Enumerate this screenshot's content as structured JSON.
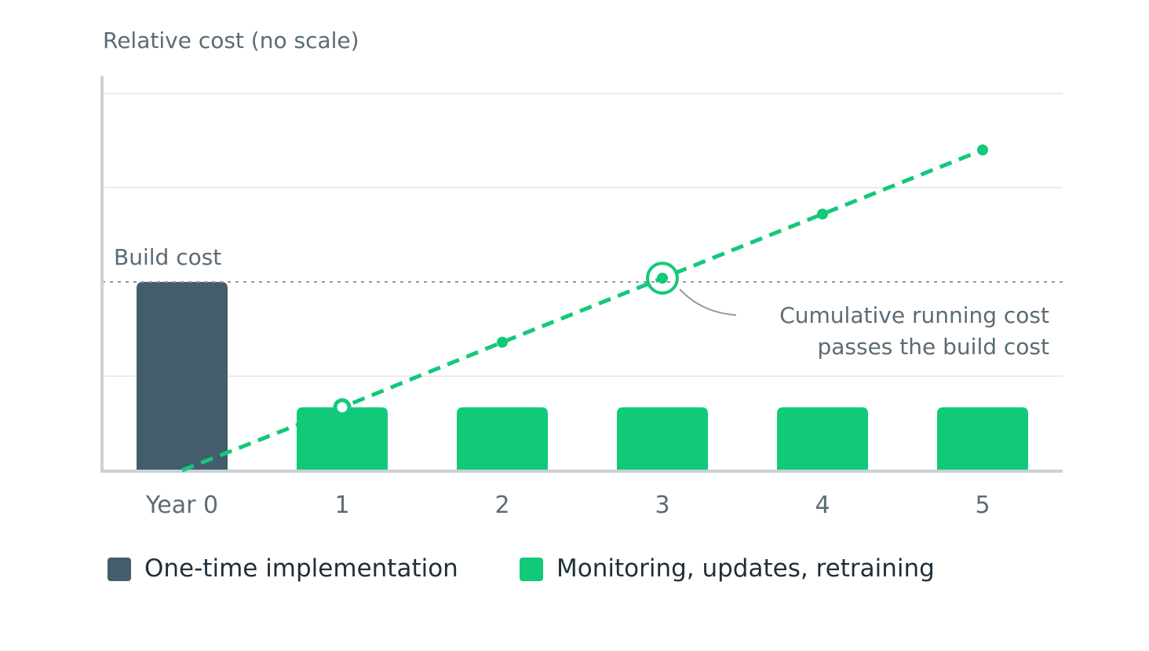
{
  "chart_data": {
    "type": "bar",
    "ylabel": "Relative cost (no scale)",
    "categories": [
      "Year 0",
      "1",
      "2",
      "3",
      "4",
      "5"
    ],
    "series": [
      {
        "name": "One-time implementation",
        "type": "bar",
        "color": "#435d6b",
        "values": [
          2,
          null,
          null,
          null,
          null,
          null
        ]
      },
      {
        "name": "Monitoring, updates, retraining",
        "type": "bar",
        "color": "#12c97a",
        "values": [
          null,
          0.67,
          0.67,
          0.67,
          0.67,
          0.67
        ]
      },
      {
        "type": "line",
        "style": "dashed",
        "color": "#12c97a",
        "values": [
          0,
          0.67,
          1.36,
          2.04,
          2.72,
          3.4
        ]
      }
    ],
    "ylim": [
      0,
      4
    ],
    "grid": true,
    "reference_line": {
      "label": "Build cost",
      "value": 2,
      "style": "dotted"
    },
    "annotation": {
      "lines": [
        "Cumulative running cost",
        "passes the build cost"
      ],
      "category": "3",
      "value": 2.04
    },
    "legend": {
      "placement": "bottom-left",
      "items": [
        "One-time implementation",
        "Monitoring, updates, retraining"
      ]
    }
  }
}
